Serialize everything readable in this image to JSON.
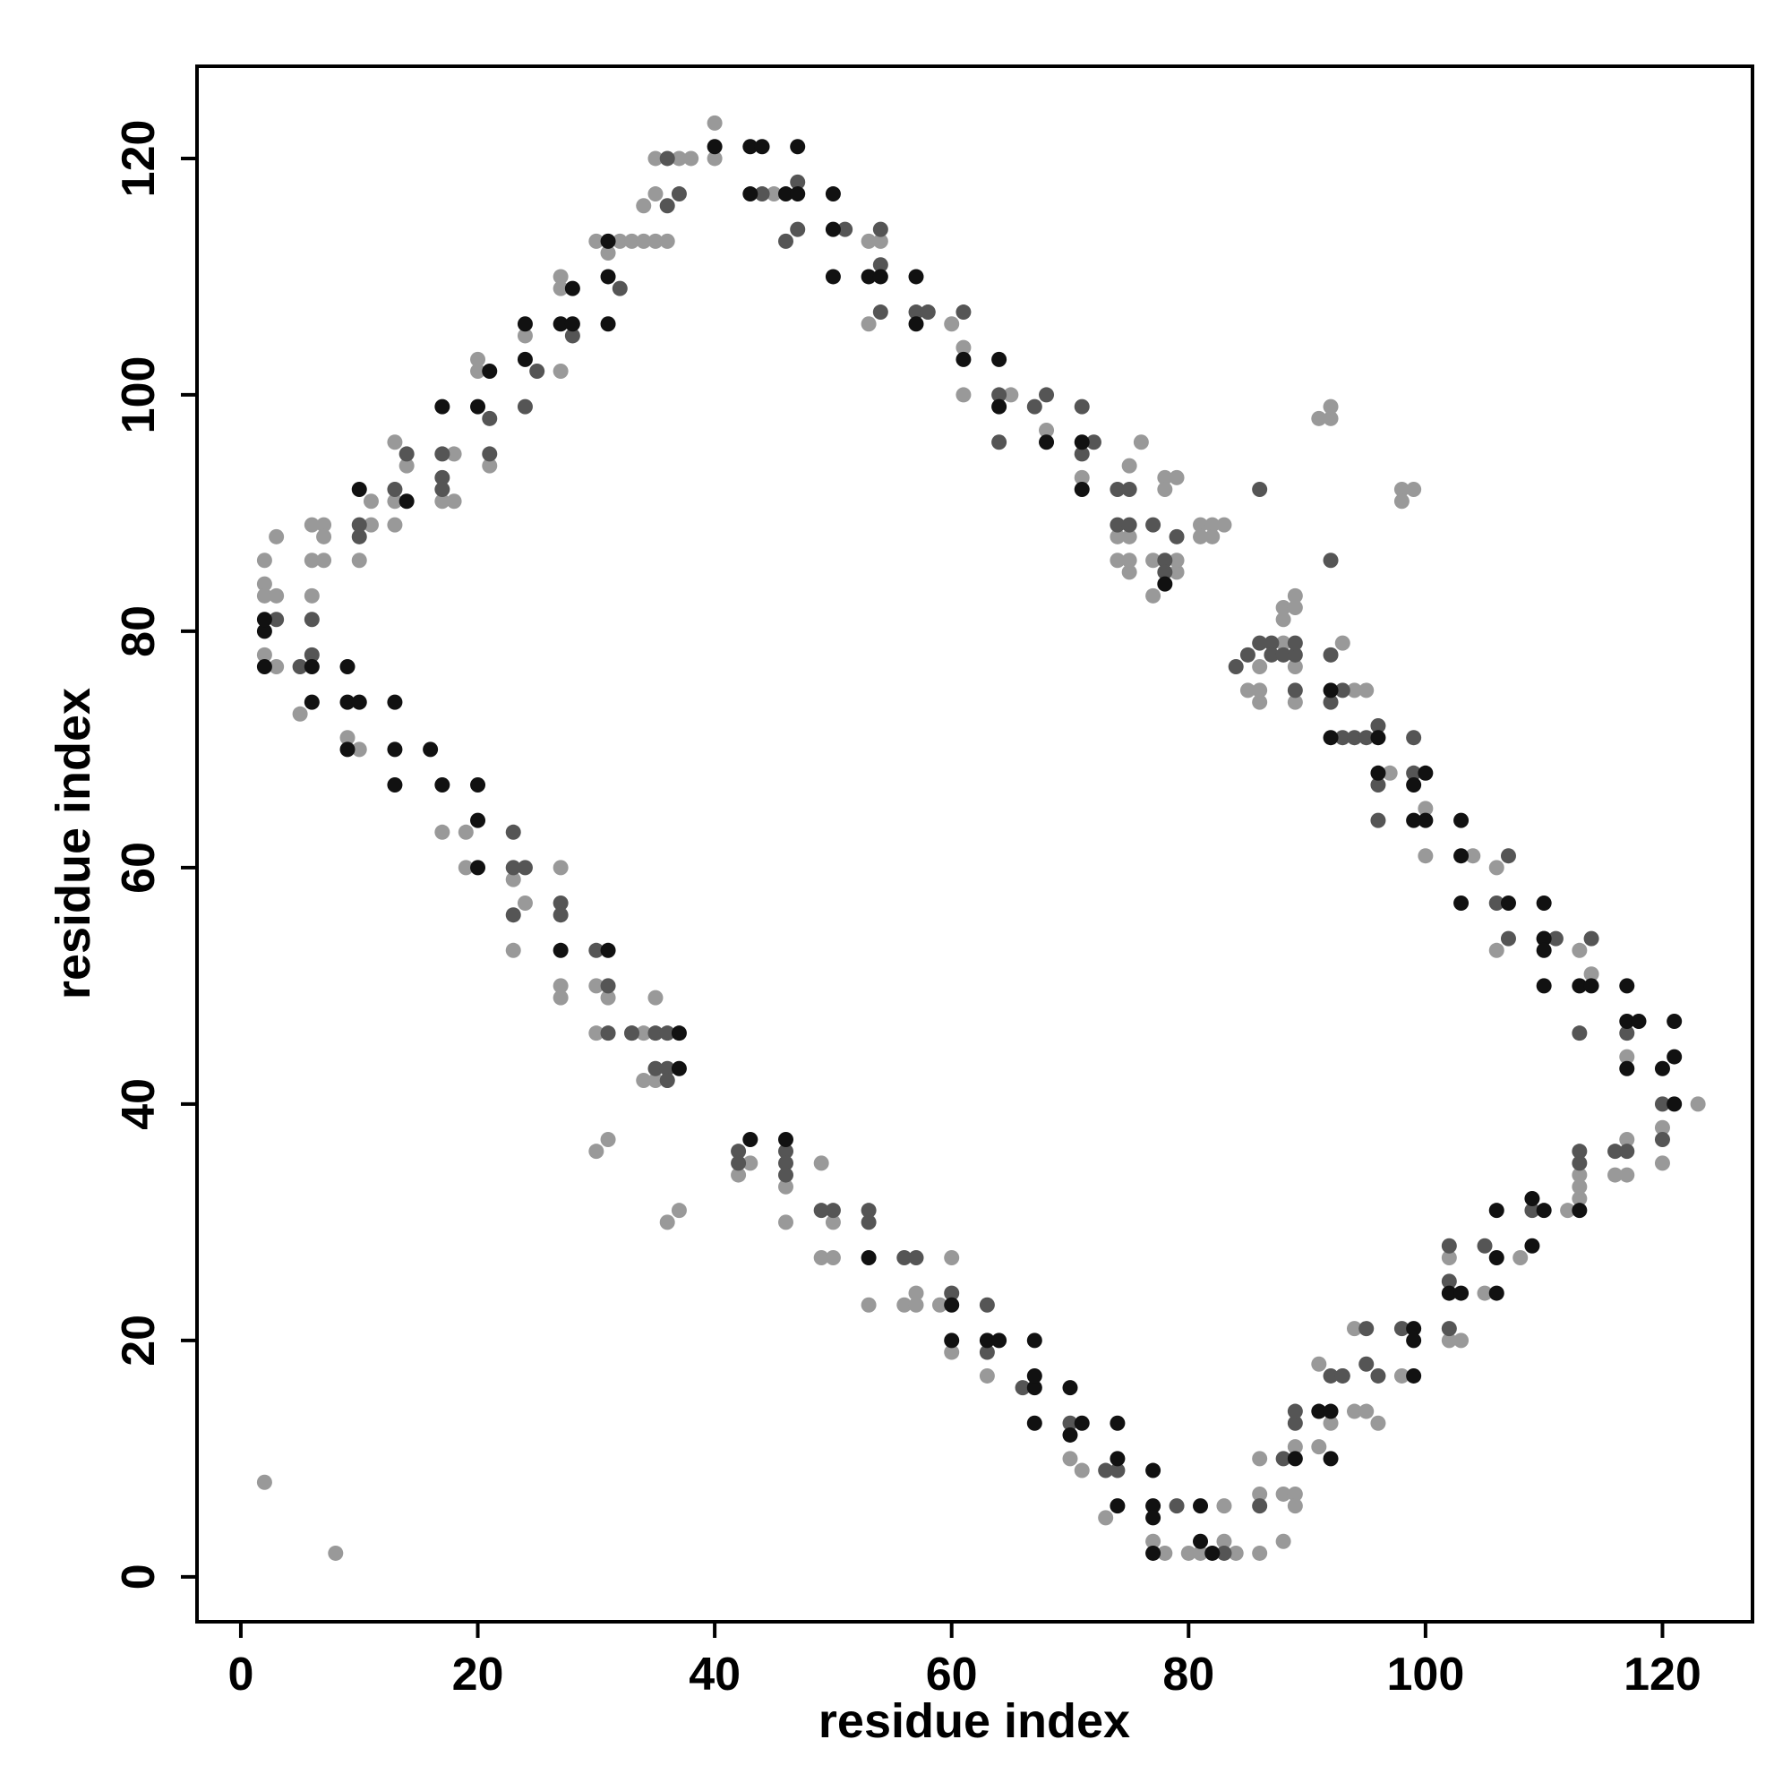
{
  "chart_data": {
    "type": "scatter",
    "xlabel": "residue index",
    "ylabel": "residue index",
    "xlim": [
      -3.7,
      127.6
    ],
    "ylim": [
      -3.8,
      127.8
    ],
    "xticks": [
      0,
      20,
      40,
      60,
      80,
      100,
      120
    ],
    "yticks": [
      0,
      20,
      40,
      60,
      80,
      100,
      120
    ],
    "grid": false,
    "series": [
      {
        "color": "#999999",
        "x": [
          2,
          2,
          2,
          2,
          3,
          3,
          3,
          6,
          6,
          6,
          7,
          7,
          7,
          10,
          11,
          11,
          9,
          10,
          13,
          13,
          13,
          14,
          17,
          18,
          18,
          20,
          20,
          21,
          24,
          27,
          27,
          27,
          31,
          32,
          33,
          34,
          35,
          36,
          35,
          34,
          35,
          37,
          38,
          40,
          40,
          5,
          17,
          19,
          19,
          23,
          23,
          24,
          27,
          27,
          27,
          30,
          30,
          31,
          33,
          34,
          35,
          34,
          35,
          36,
          30,
          31,
          36,
          37,
          2,
          8,
          42,
          43,
          46,
          46,
          49,
          49,
          50,
          50,
          53,
          56,
          57,
          57,
          59,
          60,
          60,
          63,
          70,
          71,
          73,
          77,
          78,
          80,
          81,
          83,
          83,
          84,
          86,
          86,
          86,
          88,
          88,
          89,
          89,
          89,
          91,
          91,
          92,
          93,
          94,
          94,
          95,
          96,
          98,
          102,
          102,
          103,
          105,
          108,
          112,
          113,
          113,
          113,
          116,
          117,
          117,
          120,
          120,
          123,
          117,
          113,
          114,
          106,
          106,
          104,
          100,
          100,
          97,
          95,
          94,
          89,
          89,
          86,
          86,
          85,
          86,
          88,
          88,
          89,
          89,
          88,
          93,
          91,
          92,
          92,
          98,
          98,
          99,
          79,
          78,
          78,
          79,
          79,
          77,
          77,
          75,
          75,
          74,
          76,
          75,
          74,
          75,
          81,
          81,
          82,
          82,
          83,
          65,
          61,
          61,
          60,
          58,
          54,
          53,
          53,
          45,
          68,
          71,
          30
        ],
        "y": [
          86,
          84,
          83,
          78,
          88,
          83,
          77,
          89,
          86,
          83,
          89,
          88,
          86,
          86,
          91,
          89,
          71,
          70,
          96,
          89,
          91,
          94,
          91,
          95,
          91,
          103,
          102,
          94,
          105,
          110,
          102,
          109,
          112,
          113,
          113,
          113,
          113,
          113,
          117,
          116,
          120,
          120,
          120,
          123,
          120,
          73,
          63,
          63,
          60,
          53,
          59,
          57,
          60,
          50,
          49,
          50,
          46,
          49,
          46,
          46,
          49,
          42,
          42,
          42,
          36,
          37,
          30,
          31,
          8,
          2,
          34,
          35,
          33,
          30,
          35,
          27,
          27,
          30,
          23,
          23,
          24,
          23,
          23,
          27,
          19,
          17,
          10,
          9,
          5,
          3,
          2,
          2,
          2,
          6,
          3,
          2,
          2,
          7,
          10,
          3,
          7,
          7,
          6,
          11,
          18,
          11,
          13,
          17,
          14,
          21,
          14,
          13,
          17,
          27,
          20,
          20,
          24,
          27,
          31,
          32,
          33,
          34,
          34,
          34,
          37,
          35,
          38,
          40,
          44,
          53,
          51,
          53,
          60,
          61,
          61,
          65,
          68,
          75,
          75,
          77,
          74,
          75,
          74,
          75,
          77,
          82,
          81,
          82,
          83,
          79,
          79,
          98,
          98,
          99,
          92,
          91,
          92,
          93,
          93,
          92,
          85,
          86,
          86,
          83,
          86,
          85,
          86,
          96,
          94,
          88,
          88,
          89,
          88,
          89,
          88,
          89,
          100,
          100,
          104,
          106,
          107,
          113,
          113,
          106,
          117,
          97,
          93,
          113
        ]
      },
      {
        "color": "#555555",
        "x": [
          3,
          6,
          6,
          5,
          10,
          10,
          13,
          14,
          17,
          17,
          17,
          21,
          21,
          24,
          25,
          28,
          32,
          37,
          36,
          36,
          42,
          42,
          46,
          46,
          46,
          50,
          49,
          53,
          53,
          56,
          57,
          60,
          63,
          63,
          66,
          70,
          73,
          74,
          79,
          83,
          86,
          88,
          89,
          89,
          92,
          93,
          95,
          96,
          95,
          98,
          102,
          102,
          102,
          105,
          109,
          113,
          113,
          116,
          117,
          120,
          120,
          106,
          107,
          107,
          110,
          111,
          113,
          114,
          117,
          23,
          23,
          23,
          24,
          27,
          27,
          30,
          31,
          31,
          33,
          35,
          36,
          35,
          36,
          36,
          44,
          46,
          47,
          47,
          51,
          54,
          54,
          54,
          57,
          58,
          61,
          64,
          64,
          67,
          68,
          71,
          71,
          72,
          74,
          75,
          74,
          75,
          77,
          78,
          78,
          79,
          86,
          84,
          85,
          86,
          87,
          87,
          88,
          89,
          89,
          89,
          92,
          92,
          93,
          93,
          94,
          95,
          96,
          96,
          96,
          99,
          99,
          92
        ],
        "y": [
          81,
          78,
          81,
          77,
          88,
          89,
          92,
          95,
          93,
          95,
          92,
          98,
          95,
          99,
          102,
          105,
          109,
          117,
          120,
          116,
          36,
          35,
          36,
          35,
          34,
          31,
          31,
          31,
          30,
          27,
          27,
          24,
          19,
          23,
          16,
          13,
          9,
          9,
          6,
          2,
          6,
          10,
          13,
          14,
          17,
          17,
          18,
          17,
          21,
          21,
          21,
          25,
          28,
          28,
          31,
          35,
          36,
          36,
          36,
          40,
          37,
          57,
          61,
          54,
          54,
          54,
          46,
          54,
          46,
          60,
          63,
          56,
          60,
          57,
          56,
          53,
          50,
          46,
          46,
          46,
          46,
          43,
          43,
          42,
          117,
          113,
          118,
          114,
          114,
          114,
          111,
          107,
          107,
          107,
          107,
          96,
          100,
          99,
          100,
          99,
          95,
          96,
          92,
          92,
          89,
          89,
          89,
          86,
          85,
          88,
          92,
          77,
          78,
          79,
          79,
          78,
          78,
          78,
          79,
          75,
          78,
          74,
          75,
          71,
          71,
          71,
          72,
          67,
          64,
          68,
          71,
          86
        ]
      },
      {
        "color": "#111111",
        "x": [
          2,
          2,
          2,
          6,
          6,
          9,
          9,
          9,
          10,
          13,
          13,
          13,
          16,
          17,
          20,
          20,
          20,
          27,
          31,
          37,
          37,
          10,
          14,
          17,
          20,
          21,
          24,
          24,
          27,
          28,
          28,
          31,
          31,
          31,
          40,
          43,
          43,
          44,
          46,
          47,
          47,
          50,
          50,
          50,
          53,
          54,
          57,
          57,
          61,
          64,
          64,
          68,
          71,
          71,
          78,
          43,
          46,
          53,
          60,
          60,
          63,
          64,
          67,
          67,
          67,
          67,
          70,
          70,
          71,
          74,
          74,
          74,
          77,
          77,
          77,
          77,
          81,
          81,
          82,
          91,
          92,
          92,
          89,
          99,
          99,
          99,
          102,
          103,
          106,
          106,
          106,
          109,
          109,
          110,
          113,
          103,
          103,
          103,
          107,
          110,
          110,
          110,
          110,
          113,
          114,
          117,
          117,
          118,
          117,
          120,
          121,
          121,
          121,
          96,
          99,
          99,
          100,
          100,
          92,
          96,
          92
        ],
        "y": [
          77,
          80,
          81,
          74,
          77,
          77,
          74,
          70,
          74,
          74,
          70,
          67,
          70,
          67,
          67,
          64,
          60,
          53,
          53,
          46,
          43,
          92,
          91,
          99,
          99,
          102,
          106,
          103,
          106,
          109,
          106,
          113,
          110,
          106,
          121,
          121,
          117,
          121,
          117,
          121,
          117,
          117,
          114,
          110,
          110,
          110,
          110,
          106,
          103,
          103,
          99,
          96,
          96,
          92,
          84,
          37,
          37,
          27,
          23,
          20,
          20,
          20,
          16,
          20,
          17,
          13,
          16,
          12,
          13,
          13,
          10,
          6,
          9,
          6,
          5,
          2,
          3,
          6,
          2,
          14,
          14,
          10,
          10,
          17,
          21,
          20,
          24,
          24,
          24,
          27,
          31,
          28,
          32,
          31,
          31,
          64,
          61,
          57,
          57,
          57,
          54,
          53,
          50,
          50,
          50,
          50,
          47,
          47,
          43,
          43,
          44,
          47,
          40,
          68,
          67,
          64,
          64,
          68,
          75,
          71,
          71
        ]
      }
    ]
  }
}
